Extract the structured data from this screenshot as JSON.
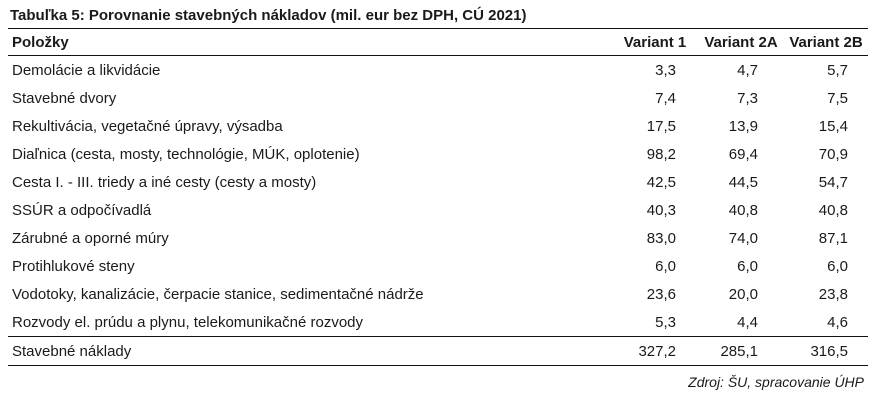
{
  "caption": "Tabuľka 5: Porovnanie stavebných nákladov (mil. eur bez DPH, CÚ 2021)",
  "headers": {
    "item": "Položky",
    "v1": "Variant 1",
    "v2a": "Variant 2A",
    "v2b": "Variant 2B"
  },
  "rows": [
    {
      "label": "Demolácie a likvidácie",
      "v1": "3,3",
      "v2a": "4,7",
      "v2b": "5,7"
    },
    {
      "label": "Stavebné dvory",
      "v1": "7,4",
      "v2a": "7,3",
      "v2b": "7,5"
    },
    {
      "label": "Rekultivácia, vegetačné úpravy, výsadba",
      "v1": "17,5",
      "v2a": "13,9",
      "v2b": "15,4"
    },
    {
      "label": "Diaľnica (cesta, mosty, technológie, MÚK, oplotenie)",
      "v1": "98,2",
      "v2a": "69,4",
      "v2b": "70,9"
    },
    {
      "label": "Cesta I. - III. triedy a iné cesty (cesty a mosty)",
      "v1": "42,5",
      "v2a": "44,5",
      "v2b": "54,7"
    },
    {
      "label": "SSÚR a odpočívadlá",
      "v1": "40,3",
      "v2a": "40,8",
      "v2b": "40,8"
    },
    {
      "label": "Zárubné a oporné múry",
      "v1": "83,0",
      "v2a": "74,0",
      "v2b": "87,1"
    },
    {
      "label": "Protihlukové steny",
      "v1": "6,0",
      "v2a": "6,0",
      "v2b": "6,0"
    },
    {
      "label": "Vodotoky, kanalizácie, čerpacie stanice, sedimentačné nádrže",
      "v1": "23,6",
      "v2a": "20,0",
      "v2b": "23,8"
    },
    {
      "label": "Rozvody el. prúdu a plynu, telekomunikačné rozvody",
      "v1": "5,3",
      "v2a": "4,4",
      "v2b": "4,6"
    }
  ],
  "total": {
    "label": "Stavebné náklady",
    "v1": "327,2",
    "v2a": "285,1",
    "v2b": "316,5"
  },
  "source": "Zdroj: ŠU, spracovanie ÚHP"
}
